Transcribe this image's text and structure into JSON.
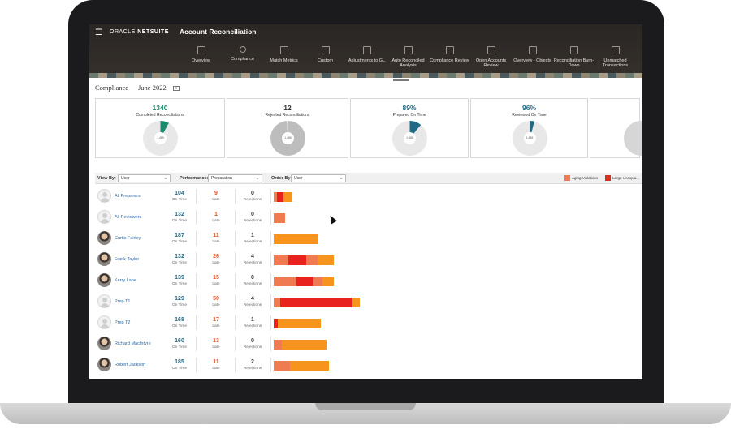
{
  "app": {
    "brand_oracle": "ORACLE",
    "brand_netsuite": "NETSUITE",
    "title": "Account Reconciliation"
  },
  "nav": [
    {
      "label": "Overview",
      "icon": "panel-icon"
    },
    {
      "label": "Compliance",
      "icon": "people-icon"
    },
    {
      "label": "Match Metrics",
      "icon": "chart-icon"
    },
    {
      "label": "Custom",
      "icon": "dashboard-icon"
    },
    {
      "label": "Adjustments to GL",
      "icon": "dashboard-icon"
    },
    {
      "label": "Auto Reconciled Analysis",
      "icon": "dashboard-icon"
    },
    {
      "label": "Compliance Review",
      "icon": "dashboard-icon"
    },
    {
      "label": "Open Accounts Review",
      "icon": "dashboard-icon"
    },
    {
      "label": "Overview - Objects",
      "icon": "dashboard-icon"
    },
    {
      "label": "Reconciliation Burn-Down",
      "icon": "dashboard-icon"
    },
    {
      "label": "Unmatched Transactions",
      "icon": "dashboard-icon"
    }
  ],
  "page": {
    "section": "Compliance",
    "period": "June 2022"
  },
  "kpis": [
    {
      "value": "1340",
      "label": "Completed Reconciliations",
      "color": "#1e8a6b",
      "fraction": 0.92,
      "hole": "1,489"
    },
    {
      "value": "12",
      "label": "Rejected Reconciliations",
      "color": "#cfcfcf",
      "fraction": 0.01,
      "hole": "1,489"
    },
    {
      "value": "89%",
      "label": "Prepared On Time",
      "color": "#1f6b86",
      "fraction": 0.89,
      "hole": "1,489"
    },
    {
      "value": "96%",
      "label": "Reviewed On Time",
      "color": "#1f6b86",
      "fraction": 0.96,
      "hole": "1,489"
    }
  ],
  "filters": {
    "view_by_label": "View By:",
    "view_by_value": "User",
    "performance_label": "Performance:",
    "performance_value": "Preparation",
    "order_by_label": "Order By:",
    "order_by_value": "User",
    "legend": [
      {
        "label": "Aging Violations",
        "color": "#f07a52"
      },
      {
        "label": "Large Unexpla...",
        "color": "#d9301e"
      }
    ]
  },
  "columns": {
    "on_time": "On Time",
    "late": "Late",
    "rejections": "Rejections"
  },
  "colors": {
    "on_time": "#1f6b86",
    "late": "#e0532a",
    "bar_orange": "#f7941d",
    "bar_red": "#e8231e",
    "bar_salmon": "#f07a52"
  },
  "users": [
    {
      "name": "All Preparers",
      "photo": false,
      "on_time": "104",
      "late": "9",
      "rejections": "0",
      "bar": [
        {
          "w": 4,
          "c": "salmon"
        },
        {
          "w": 8,
          "c": "red"
        },
        {
          "w": 11,
          "c": "orange"
        }
      ]
    },
    {
      "name": "All Reviewers",
      "photo": false,
      "on_time": "132",
      "late": "1",
      "rejections": "0",
      "bar": [
        {
          "w": 14,
          "c": "salmon"
        }
      ]
    },
    {
      "name": "Curtis Fairley",
      "photo": true,
      "on_time": "187",
      "late": "11",
      "rejections": "1",
      "bar": [
        {
          "w": 55,
          "c": "orange"
        }
      ]
    },
    {
      "name": "Frank Taylor",
      "photo": true,
      "on_time": "132",
      "late": "26",
      "rejections": "4",
      "bar": [
        {
          "w": 18,
          "c": "salmon"
        },
        {
          "w": 22,
          "c": "red"
        },
        {
          "w": 14,
          "c": "salmon"
        },
        {
          "w": 20,
          "c": "orange"
        }
      ]
    },
    {
      "name": "Kerry Lane",
      "photo": true,
      "on_time": "139",
      "late": "15",
      "rejections": "0",
      "bar": [
        {
          "w": 28,
          "c": "salmon"
        },
        {
          "w": 20,
          "c": "red"
        },
        {
          "w": 12,
          "c": "salmon"
        },
        {
          "w": 14,
          "c": "orange"
        }
      ]
    },
    {
      "name": "Prep T1",
      "photo": false,
      "on_time": "129",
      "late": "50",
      "rejections": "4",
      "bar": [
        {
          "w": 8,
          "c": "salmon"
        },
        {
          "w": 88,
          "c": "red"
        },
        {
          "w": 10,
          "c": "orange"
        }
      ]
    },
    {
      "name": "Prep T2",
      "photo": false,
      "on_time": "168",
      "late": "17",
      "rejections": "1",
      "bar": [
        {
          "w": 5,
          "c": "red"
        },
        {
          "w": 53,
          "c": "orange"
        }
      ]
    },
    {
      "name": "Richard MacIntyre",
      "photo": true,
      "on_time": "160",
      "late": "13",
      "rejections": "0",
      "bar": [
        {
          "w": 10,
          "c": "salmon"
        },
        {
          "w": 55,
          "c": "orange"
        }
      ]
    },
    {
      "name": "Robert Jackson",
      "photo": true,
      "on_time": "185",
      "late": "11",
      "rejections": "2",
      "bar": [
        {
          "w": 20,
          "c": "salmon"
        },
        {
          "w": 48,
          "c": "orange"
        }
      ]
    }
  ]
}
